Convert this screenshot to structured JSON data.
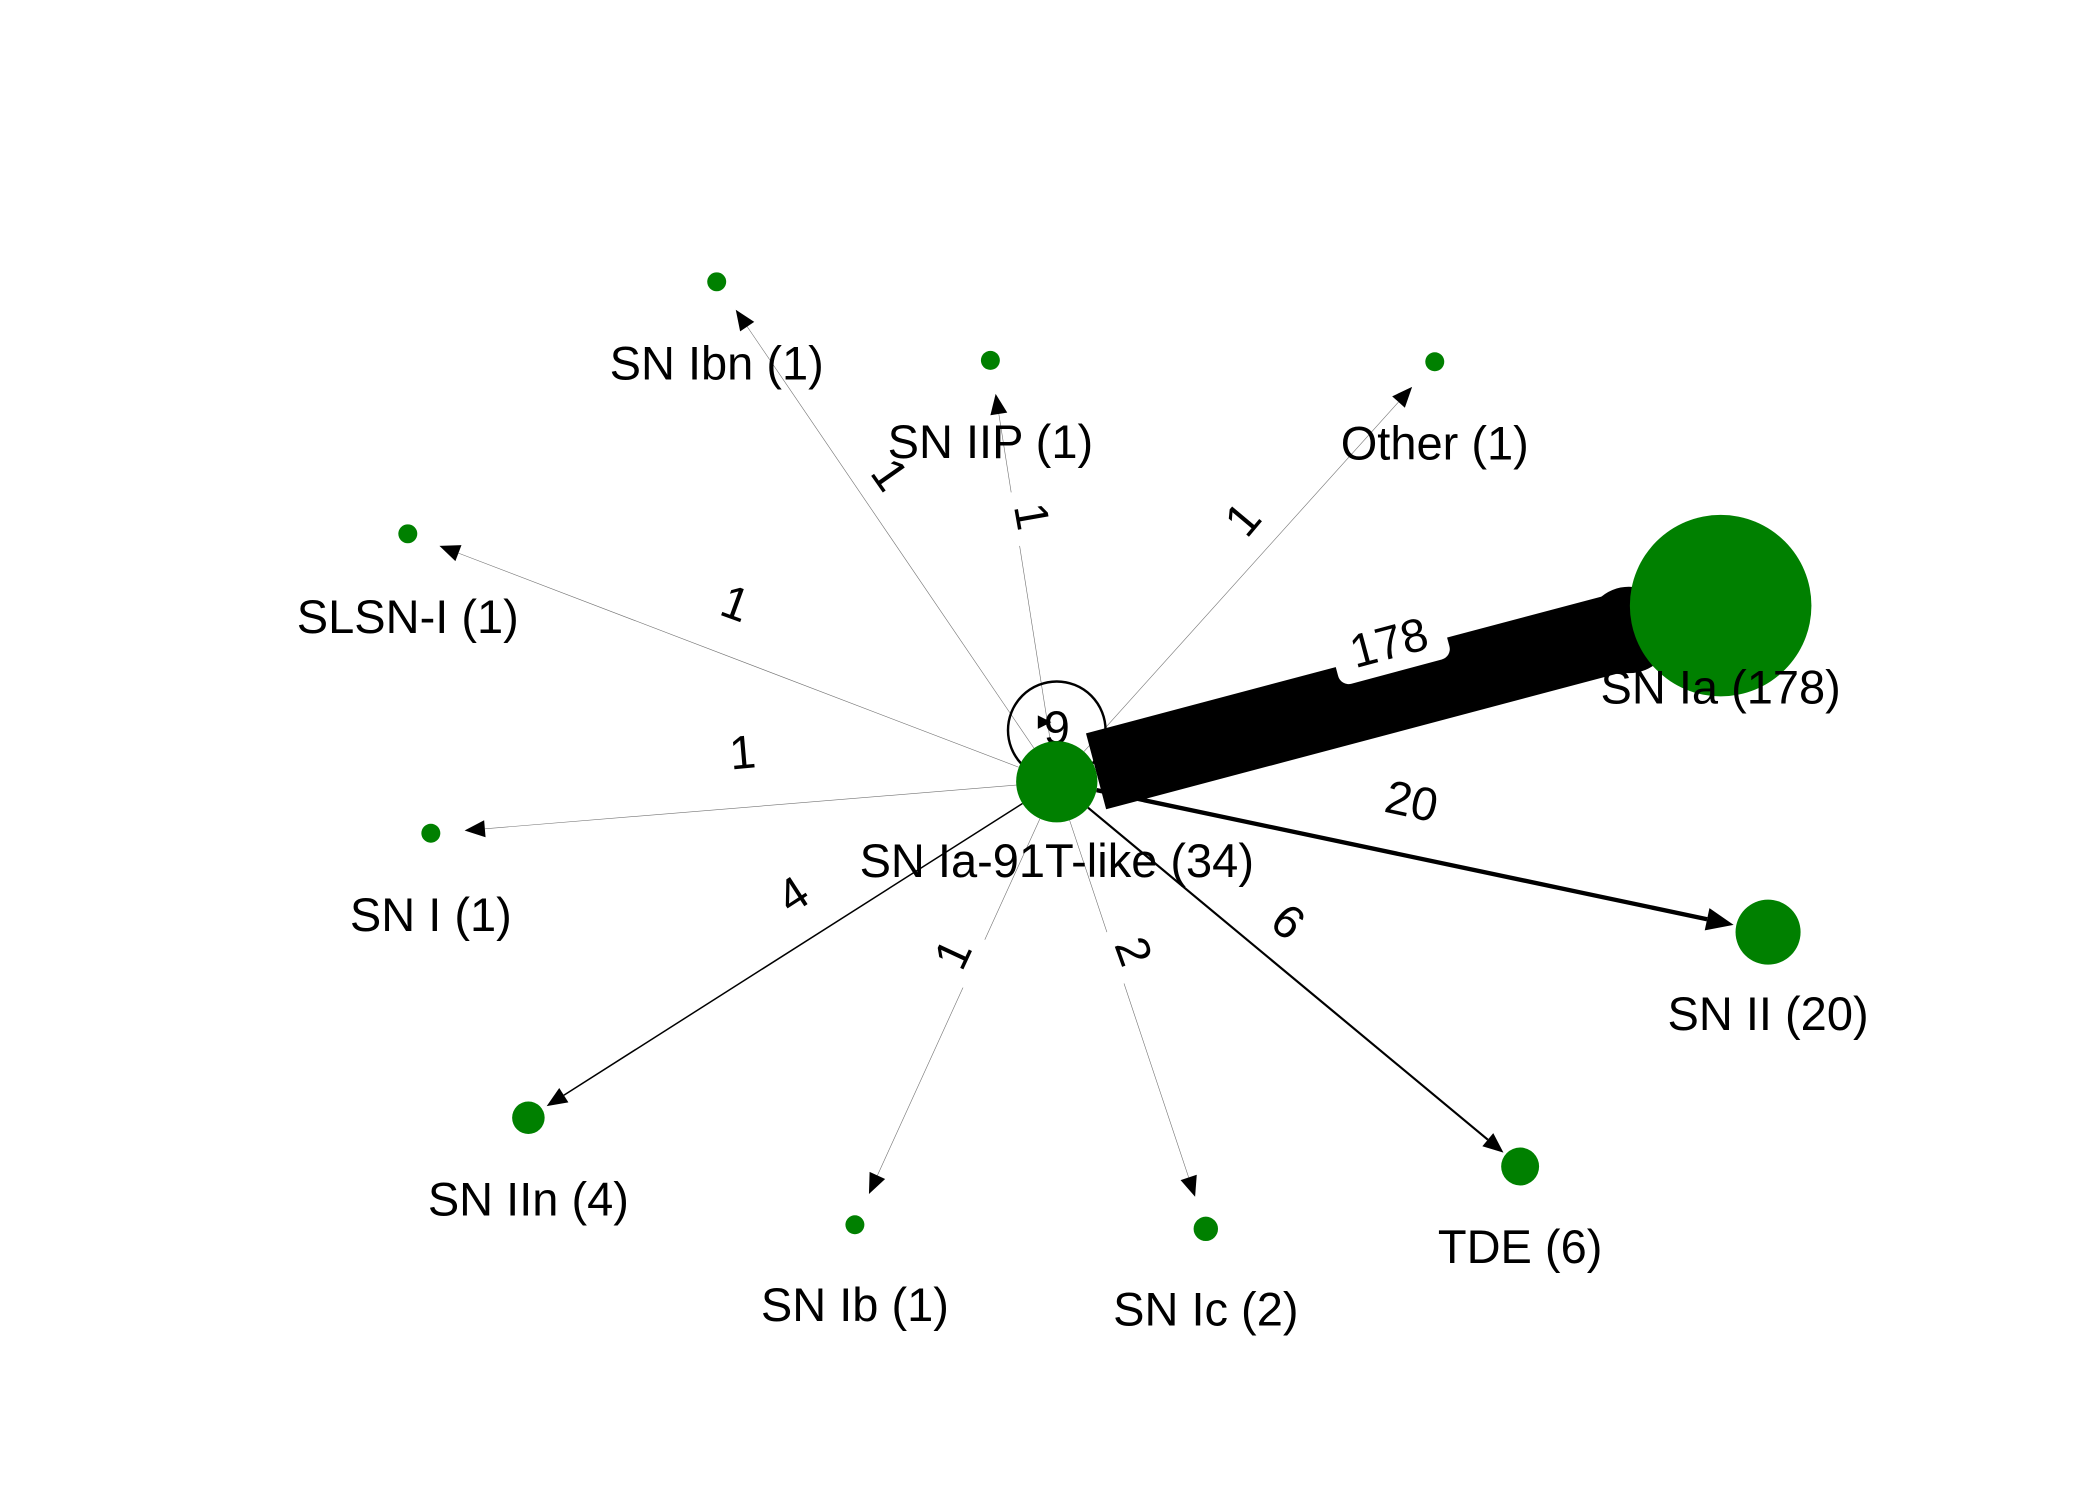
{
  "colors": {
    "node": "#008000",
    "edge": "#000000",
    "background": "#ffffff"
  },
  "center_node": {
    "id": "center",
    "label": "SN Ia-91T-like (34)",
    "count": 34
  },
  "self_loop": {
    "label": "9",
    "value": 9
  },
  "nodes": [
    {
      "id": "sn-ia",
      "label": "SN Ia (178)",
      "count": 178
    },
    {
      "id": "sn-ii",
      "label": "SN II (20)",
      "count": 20
    },
    {
      "id": "tde",
      "label": "TDE (6)",
      "count": 6
    },
    {
      "id": "sn-ic",
      "label": "SN Ic (2)",
      "count": 2
    },
    {
      "id": "sn-ib",
      "label": "SN Ib (1)",
      "count": 1
    },
    {
      "id": "sn-iin",
      "label": "SN IIn (4)",
      "count": 4
    },
    {
      "id": "sn-i",
      "label": "SN I (1)",
      "count": 1
    },
    {
      "id": "slsn-i",
      "label": "SLSN-I (1)",
      "count": 1
    },
    {
      "id": "sn-ibn",
      "label": "SN Ibn (1)",
      "count": 1
    },
    {
      "id": "sn-iip",
      "label": "SN IIP (1)",
      "count": 1
    },
    {
      "id": "other",
      "label": "Other (1)",
      "count": 1
    }
  ],
  "edges": [
    {
      "target": "sn-ia",
      "label": "178",
      "value": 178
    },
    {
      "target": "sn-ii",
      "label": "20",
      "value": 20
    },
    {
      "target": "tde",
      "label": "6",
      "value": 6
    },
    {
      "target": "sn-ic",
      "label": "2",
      "value": 2
    },
    {
      "target": "sn-ib",
      "label": "1",
      "value": 1
    },
    {
      "target": "sn-iin",
      "label": "4",
      "value": 4
    },
    {
      "target": "sn-i",
      "label": "1",
      "value": 1
    },
    {
      "target": "slsn-i",
      "label": "1",
      "value": 1
    },
    {
      "target": "sn-ibn",
      "label": "1",
      "value": 1
    },
    {
      "target": "sn-iip",
      "label": "1",
      "value": 1
    },
    {
      "target": "other",
      "label": "1",
      "value": 1
    }
  ]
}
